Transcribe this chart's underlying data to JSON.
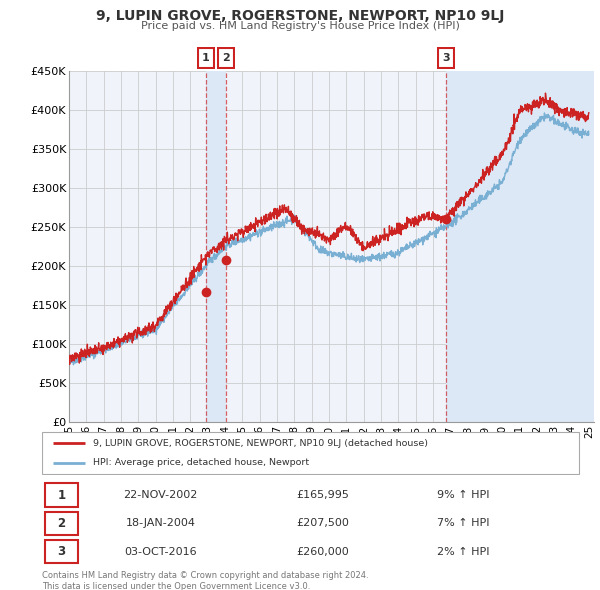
{
  "title": "9, LUPIN GROVE, ROGERSTONE, NEWPORT, NP10 9LJ",
  "subtitle": "Price paid vs. HM Land Registry's House Price Index (HPI)",
  "background_color": "#ffffff",
  "plot_bg_color": "#f0f4fa",
  "grid_color": "#cccccc",
  "hpi_line_color": "#7aafd4",
  "price_line_color": "#cc2222",
  "sale_marker_color": "#cc2222",
  "shade_color": "#dce8f5",
  "ylim": [
    0,
    450000
  ],
  "yticks": [
    0,
    50000,
    100000,
    150000,
    200000,
    250000,
    300000,
    350000,
    400000,
    450000
  ],
  "ytick_labels": [
    "£0",
    "£50K",
    "£100K",
    "£150K",
    "£200K",
    "£250K",
    "£300K",
    "£350K",
    "£400K",
    "£450K"
  ],
  "legend_property_label": "9, LUPIN GROVE, ROGERSTONE, NEWPORT, NP10 9LJ (detached house)",
  "legend_hpi_label": "HPI: Average price, detached house, Newport",
  "sales": [
    {
      "num": 1,
      "date_label": "22-NOV-2002",
      "price_label": "£165,995",
      "hpi_label": "9% ↑ HPI",
      "date_x": 2002.89,
      "price_y": 165995
    },
    {
      "num": 2,
      "date_label": "18-JAN-2004",
      "price_label": "£207,500",
      "hpi_label": "7% ↑ HPI",
      "date_x": 2004.05,
      "price_y": 207500
    },
    {
      "num": 3,
      "date_label": "03-OCT-2016",
      "price_label": "£260,000",
      "hpi_label": "2% ↑ HPI",
      "date_x": 2016.75,
      "price_y": 260000
    }
  ],
  "footnote": "Contains HM Land Registry data © Crown copyright and database right 2024.\nThis data is licensed under the Open Government Licence v3.0.",
  "xlim": [
    1995,
    2025.3
  ],
  "xlim_end": 2025.3,
  "xticks": [
    1995,
    1996,
    1997,
    1998,
    1999,
    2000,
    2001,
    2002,
    2003,
    2004,
    2005,
    2006,
    2007,
    2008,
    2009,
    2010,
    2011,
    2012,
    2013,
    2014,
    2015,
    2016,
    2017,
    2018,
    2019,
    2020,
    2021,
    2022,
    2023,
    2024,
    2025
  ]
}
